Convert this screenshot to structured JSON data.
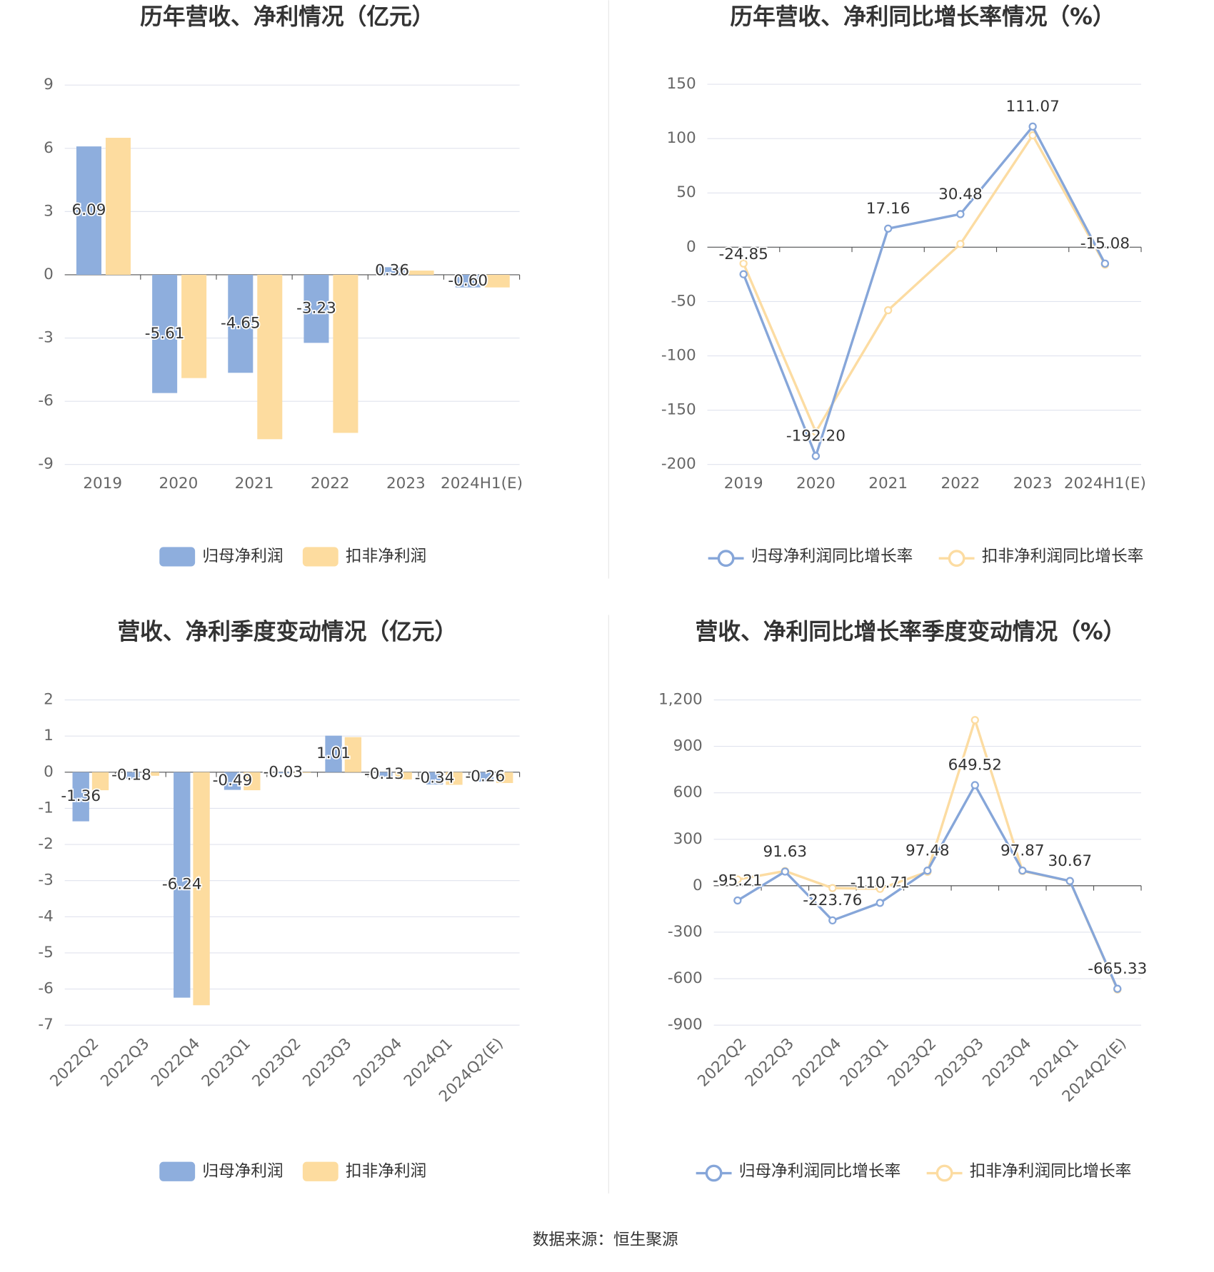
{
  "chart_data": [
    {
      "type": "bar",
      "title": "历年营收、净利情况（亿元）",
      "categories": [
        "2019",
        "2020",
        "2021",
        "2022",
        "2023",
        "2024H1(E)"
      ],
      "series": [
        {
          "name": "归母净利润",
          "color": "#8eaedd",
          "values": [
            6.09,
            -5.61,
            -4.65,
            -3.23,
            0.36,
            -0.6
          ],
          "value_labels": [
            "6.09",
            "-5.61",
            "-4.65",
            "-3.23",
            "0.36",
            "-0.60"
          ]
        },
        {
          "name": "扣非净利润",
          "color": "#fddc9f",
          "values": [
            6.5,
            -4.9,
            -7.8,
            -7.5,
            0.2,
            -0.6
          ]
        }
      ],
      "ylim": [
        -9,
        9
      ],
      "yticks": [
        -9,
        -6,
        -3,
        0,
        3,
        6,
        9
      ],
      "grid": true
    },
    {
      "type": "line",
      "title": "历年营收、净利同比增长率情况（%）",
      "categories": [
        "2019",
        "2020",
        "2021",
        "2022",
        "2023",
        "2024H1(E)"
      ],
      "series": [
        {
          "name": "归母净利润同比增长率",
          "color": "#86a6d9",
          "values": [
            -24.85,
            -192.2,
            17.16,
            30.48,
            111.07,
            -15.08
          ],
          "value_labels": [
            "-24.85",
            "-192.20",
            "17.16",
            "30.48",
            "111.07",
            "-15.08"
          ]
        },
        {
          "name": "扣非净利润同比增长率",
          "color": "#fcdca2",
          "values": [
            -15,
            -170,
            -58,
            3,
            103,
            -16
          ]
        }
      ],
      "ylim": [
        -200,
        150
      ],
      "yticks": [
        -200,
        -150,
        -100,
        -50,
        0,
        50,
        100,
        150
      ],
      "grid": true
    },
    {
      "type": "bar",
      "title": "营收、净利季度变动情况（亿元）",
      "categories": [
        "2022Q2",
        "2022Q3",
        "2022Q4",
        "2023Q1",
        "2023Q2",
        "2023Q3",
        "2023Q4",
        "2024Q1",
        "2024Q2(E)"
      ],
      "series": [
        {
          "name": "归母净利润",
          "color": "#8eaedd",
          "values": [
            -1.36,
            -0.18,
            -6.24,
            -0.49,
            -0.03,
            1.01,
            -0.13,
            -0.34,
            -0.26
          ]
        },
        {
          "name": "扣非净利润",
          "color": "#fddc9f",
          "values": [
            -0.5,
            -0.1,
            -6.45,
            -0.5,
            -0.02,
            0.97,
            -0.2,
            -0.35,
            -0.3
          ]
        }
      ],
      "ylim": [
        -7,
        2
      ],
      "yticks": [
        -7,
        -6,
        -5,
        -4,
        -3,
        -2,
        -1,
        0,
        1,
        2
      ],
      "grid": true
    },
    {
      "type": "line",
      "title": "营收、净利同比增长率季度变动情况（%）",
      "categories": [
        "2022Q2",
        "2022Q3",
        "2022Q4",
        "2023Q1",
        "2023Q2",
        "2023Q3",
        "2023Q4",
        "2024Q1",
        "2024Q2(E)"
      ],
      "series": [
        {
          "name": "归母净利润同比增长率",
          "color": "#86a6d9",
          "values": [
            -95.21,
            91.63,
            -223.76,
            -110.71,
            97.48,
            649.52,
            97.87,
            30.67,
            -665.33
          ]
        },
        {
          "name": "扣非净利润同比增长率",
          "color": "#fcdca2",
          "values": [
            40,
            95,
            -15,
            -20,
            90,
            1070,
            95,
            30,
            -670
          ]
        }
      ],
      "ylim": [
        -900,
        1200
      ],
      "yticks": [
        -900,
        -600,
        -300,
        0,
        300,
        600,
        900,
        {
          "value": 1200,
          "label": "1,200"
        }
      ],
      "grid": true
    }
  ],
  "source": "数据来源：恒生聚源"
}
